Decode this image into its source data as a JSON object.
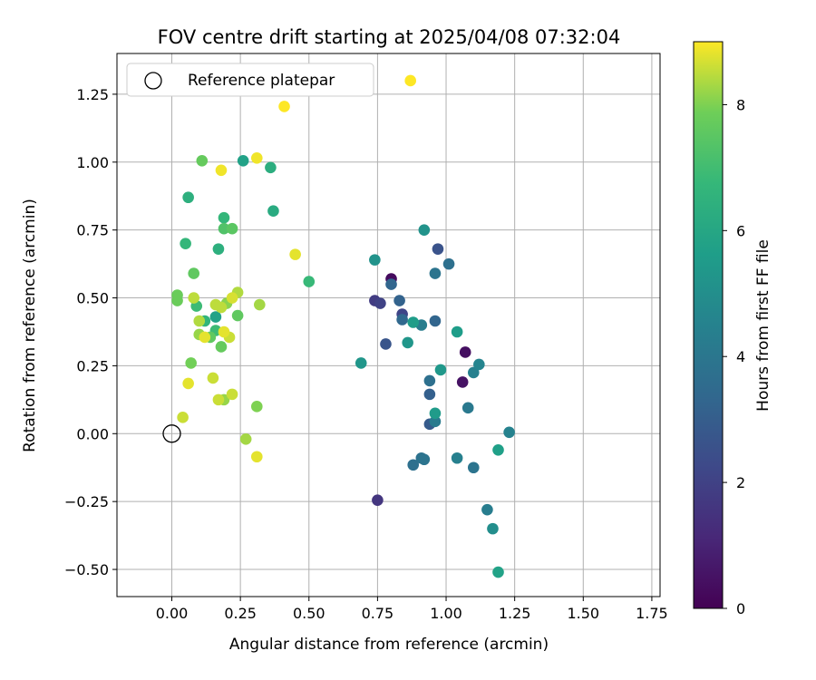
{
  "chart_data": {
    "type": "scatter",
    "title": "FOV centre drift starting at 2025/04/08 07:32:04",
    "xlabel": "Angular distance from reference (arcmin)",
    "ylabel": "Rotation from reference (arcmin)",
    "xlim": [
      -0.2,
      1.78
    ],
    "ylim": [
      -0.6,
      1.4
    ],
    "xticks": [
      "0.00",
      "0.25",
      "0.50",
      "0.75",
      "1.00",
      "1.25",
      "1.50",
      "1.75"
    ],
    "xtick_values": [
      0,
      0.25,
      0.5,
      0.75,
      1.0,
      1.25,
      1.5,
      1.75
    ],
    "yticks": [
      "−0.50",
      "−0.25",
      "0.00",
      "0.25",
      "0.50",
      "0.75",
      "1.00",
      "1.25"
    ],
    "ytick_values": [
      -0.5,
      -0.25,
      0,
      0.25,
      0.5,
      0.75,
      1.0,
      1.25
    ],
    "grid": true,
    "legend": {
      "position": "top-left",
      "label": "Reference platepar",
      "marker": "open-circle"
    },
    "reference_point": {
      "x": 0.0,
      "y": 0.0
    },
    "colorbar": {
      "label": "Hours from first FF file",
      "range": [
        0,
        9
      ],
      "ticks": [
        "0",
        "2",
        "4",
        "6",
        "8"
      ],
      "tick_values": [
        0,
        2,
        4,
        6,
        8
      ],
      "colormap": "viridis"
    },
    "series": [
      {
        "points": [
          {
            "x": 0.8,
            "y": 0.57,
            "h": 0.3
          },
          {
            "x": 1.07,
            "y": 0.3,
            "h": 0.4
          },
          {
            "x": 1.06,
            "y": 0.19,
            "h": 0.5
          },
          {
            "x": 0.75,
            "y": -0.245,
            "h": 1.6
          },
          {
            "x": 0.74,
            "y": 0.49,
            "h": 1.8
          },
          {
            "x": 0.76,
            "y": 0.48,
            "h": 2.0
          },
          {
            "x": 0.84,
            "y": 0.44,
            "h": 2.1
          },
          {
            "x": 0.97,
            "y": 0.68,
            "h": 2.6
          },
          {
            "x": 0.78,
            "y": 0.33,
            "h": 2.7
          },
          {
            "x": 0.94,
            "y": 0.035,
            "h": 2.9
          },
          {
            "x": 0.94,
            "y": 0.145,
            "h": 3.1
          },
          {
            "x": 0.83,
            "y": 0.49,
            "h": 3.2
          },
          {
            "x": 0.96,
            "y": 0.415,
            "h": 3.3
          },
          {
            "x": 0.8,
            "y": 0.55,
            "h": 3.3
          },
          {
            "x": 0.84,
            "y": 0.42,
            "h": 3.4
          },
          {
            "x": 0.94,
            "y": 0.195,
            "h": 3.7
          },
          {
            "x": 1.01,
            "y": 0.625,
            "h": 3.7
          },
          {
            "x": 0.88,
            "y": -0.115,
            "h": 3.7
          },
          {
            "x": 0.91,
            "y": -0.09,
            "h": 3.8
          },
          {
            "x": 0.92,
            "y": -0.095,
            "h": 3.9
          },
          {
            "x": 0.96,
            "y": 0.59,
            "h": 3.9
          },
          {
            "x": 1.1,
            "y": -0.125,
            "h": 3.9
          },
          {
            "x": 1.08,
            "y": 0.095,
            "h": 4.1
          },
          {
            "x": 0.96,
            "y": 0.045,
            "h": 4.2
          },
          {
            "x": 0.91,
            "y": 0.4,
            "h": 4.3
          },
          {
            "x": 1.15,
            "y": -0.28,
            "h": 4.3
          },
          {
            "x": 1.04,
            "y": -0.09,
            "h": 4.4
          },
          {
            "x": 1.1,
            "y": 0.225,
            "h": 4.4
          },
          {
            "x": 1.23,
            "y": 0.005,
            "h": 4.5
          },
          {
            "x": 1.12,
            "y": 0.255,
            "h": 4.6
          },
          {
            "x": 1.17,
            "y": -0.35,
            "h": 5.0
          },
          {
            "x": 0.92,
            "y": 0.75,
            "h": 5.2
          },
          {
            "x": 0.74,
            "y": 0.64,
            "h": 5.2
          },
          {
            "x": 0.69,
            "y": 0.26,
            "h": 5.3
          },
          {
            "x": 0.86,
            "y": 0.335,
            "h": 5.3
          },
          {
            "x": 0.98,
            "y": 0.235,
            "h": 5.4
          },
          {
            "x": 0.96,
            "y": 0.075,
            "h": 5.5
          },
          {
            "x": 0.88,
            "y": 0.41,
            "h": 5.6
          },
          {
            "x": 1.04,
            "y": 0.375,
            "h": 5.6
          },
          {
            "x": 1.19,
            "y": -0.06,
            "h": 5.7
          },
          {
            "x": 1.19,
            "y": -0.51,
            "h": 5.8
          },
          {
            "x": 0.26,
            "y": 1.005,
            "h": 5.8
          },
          {
            "x": 0.16,
            "y": 0.43,
            "h": 5.8
          },
          {
            "x": 0.37,
            "y": 0.82,
            "h": 6.2
          },
          {
            "x": 0.36,
            "y": 0.98,
            "h": 6.3
          },
          {
            "x": 0.06,
            "y": 0.87,
            "h": 6.4
          },
          {
            "x": 0.17,
            "y": 0.68,
            "h": 6.4
          },
          {
            "x": 0.12,
            "y": 0.415,
            "h": 6.6
          },
          {
            "x": 0.05,
            "y": 0.7,
            "h": 6.7
          },
          {
            "x": 0.19,
            "y": 0.795,
            "h": 6.7
          },
          {
            "x": 0.5,
            "y": 0.56,
            "h": 6.8
          },
          {
            "x": 0.09,
            "y": 0.47,
            "h": 6.9
          },
          {
            "x": 0.16,
            "y": 0.38,
            "h": 6.9
          },
          {
            "x": 0.19,
            "y": 0.755,
            "h": 7.3
          },
          {
            "x": 0.22,
            "y": 0.755,
            "h": 7.5
          },
          {
            "x": 0.08,
            "y": 0.59,
            "h": 7.6
          },
          {
            "x": 0.24,
            "y": 0.435,
            "h": 7.6
          },
          {
            "x": 0.14,
            "y": 0.355,
            "h": 7.6
          },
          {
            "x": 0.11,
            "y": 1.005,
            "h": 7.7
          },
          {
            "x": 0.18,
            "y": 0.32,
            "h": 7.7
          },
          {
            "x": 0.02,
            "y": 0.49,
            "h": 7.8
          },
          {
            "x": 0.02,
            "y": 0.51,
            "h": 7.8
          },
          {
            "x": 0.07,
            "y": 0.26,
            "h": 7.9
          },
          {
            "x": 0.31,
            "y": 0.1,
            "h": 8.0
          },
          {
            "x": 0.2,
            "y": 0.48,
            "h": 8.1
          },
          {
            "x": 0.1,
            "y": 0.365,
            "h": 8.2
          },
          {
            "x": 0.19,
            "y": 0.125,
            "h": 8.2
          },
          {
            "x": 0.27,
            "y": -0.02,
            "h": 8.3
          },
          {
            "x": 0.32,
            "y": 0.475,
            "h": 8.3
          },
          {
            "x": 0.24,
            "y": 0.52,
            "h": 8.4
          },
          {
            "x": 0.1,
            "y": 0.415,
            "h": 8.4
          },
          {
            "x": 0.08,
            "y": 0.5,
            "h": 8.5
          },
          {
            "x": 0.16,
            "y": 0.475,
            "h": 8.5
          },
          {
            "x": 0.18,
            "y": 0.465,
            "h": 8.5
          },
          {
            "x": 0.15,
            "y": 0.205,
            "h": 8.6
          },
          {
            "x": 0.21,
            "y": 0.355,
            "h": 8.6
          },
          {
            "x": 0.04,
            "y": 0.06,
            "h": 8.6
          },
          {
            "x": 0.22,
            "y": 0.145,
            "h": 8.6
          },
          {
            "x": 0.17,
            "y": 0.125,
            "h": 8.6
          },
          {
            "x": 0.22,
            "y": 0.5,
            "h": 8.7
          },
          {
            "x": 0.06,
            "y": 0.185,
            "h": 8.8
          },
          {
            "x": 0.12,
            "y": 0.355,
            "h": 8.8
          },
          {
            "x": 0.19,
            "y": 0.375,
            "h": 8.8
          },
          {
            "x": 0.31,
            "y": -0.085,
            "h": 8.8
          },
          {
            "x": 0.45,
            "y": 0.66,
            "h": 8.8
          },
          {
            "x": 0.18,
            "y": 0.97,
            "h": 8.9
          },
          {
            "x": 0.31,
            "y": 1.015,
            "h": 8.9
          },
          {
            "x": 0.41,
            "y": 1.205,
            "h": 9.0
          },
          {
            "x": 0.87,
            "y": 1.3,
            "h": 9.0
          }
        ]
      }
    ]
  }
}
